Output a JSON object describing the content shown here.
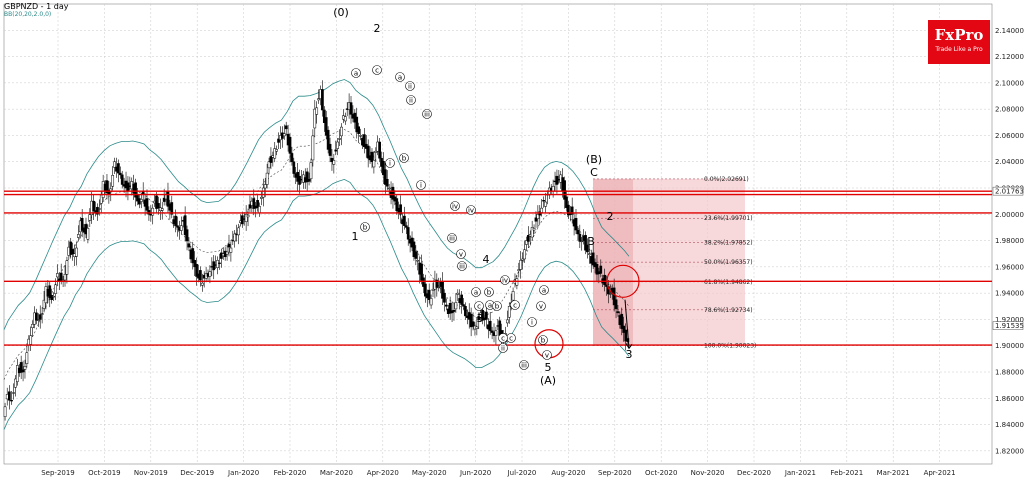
{
  "header": {
    "symbol_title": "GBPNZD - 1 day",
    "indicator": "BB(20,20,2.0,0)"
  },
  "logo": {
    "name": "FxPro",
    "tagline": "Trade Like a Pro"
  },
  "colors": {
    "background": "#ffffff",
    "grid": "#c8c8c8",
    "bullish": "#1a9a1a",
    "bearish": "#d01010",
    "candle": "#000000",
    "bollinger": "#2a8a8a",
    "level_line": "#e00000",
    "fib_zone": "#f3c9cc",
    "fib_zone_dark": "#e9a8ae",
    "logo_bg": "#e30613"
  },
  "chart_data": {
    "type": "candlestick",
    "title": "GBPNZD - 1 day",
    "indicator": "BB(20,20,2.0,0)",
    "ylim": [
      1.81,
      2.16
    ],
    "y_ticks": [
      "2.14000",
      "2.12000",
      "2.10000",
      "2.08000",
      "2.06000",
      "2.04000",
      "2.02000",
      "2.00000",
      "1.98000",
      "1.96000",
      "1.94000",
      "1.92000",
      "1.90000",
      "1.88000",
      "1.86000",
      "1.84000",
      "1.82000"
    ],
    "x_ticks": [
      "Sep-2019",
      "Oct-2019",
      "Nov-2019",
      "Dec-2019",
      "Jan-2020",
      "Feb-2020",
      "Mar-2020",
      "Apr-2020",
      "May-2020",
      "Jun-2020",
      "Jul-2020",
      "Aug-2020",
      "Sep-2020",
      "Oct-2020",
      "Nov-2020",
      "Dec-2020",
      "Jan-2021",
      "Feb-2021",
      "Mar-2021",
      "Apr-2021"
    ],
    "grid": true,
    "price_path": [
      [
        0,
        1.85
      ],
      [
        3,
        1.865
      ],
      [
        6,
        1.86
      ],
      [
        10,
        1.885
      ],
      [
        14,
        1.88
      ],
      [
        18,
        1.905
      ],
      [
        22,
        1.925
      ],
      [
        26,
        1.92
      ],
      [
        30,
        1.945
      ],
      [
        34,
        1.935
      ],
      [
        38,
        1.955
      ],
      [
        42,
        1.95
      ],
      [
        46,
        1.975
      ],
      [
        50,
        1.97
      ],
      [
        54,
        1.995
      ],
      [
        58,
        1.985
      ],
      [
        62,
        2.01
      ],
      [
        66,
        2.0
      ],
      [
        70,
        2.025
      ],
      [
        74,
        2.015
      ],
      [
        78,
        2.04
      ],
      [
        82,
        2.03
      ],
      [
        86,
        2.02
      ],
      [
        90,
        2.025
      ],
      [
        94,
        2.01
      ],
      [
        98,
        2.015
      ],
      [
        102,
        2.0
      ],
      [
        106,
        2.01
      ],
      [
        110,
        2.005
      ],
      [
        114,
        2.015
      ],
      [
        118,
        2.0
      ],
      [
        122,
        1.99
      ],
      [
        126,
        1.995
      ],
      [
        130,
        1.975
      ],
      [
        134,
        1.96
      ],
      [
        138,
        1.95
      ],
      [
        142,
        1.955
      ],
      [
        146,
        1.96
      ],
      [
        150,
        1.965
      ],
      [
        154,
        1.97
      ],
      [
        158,
        1.975
      ],
      [
        162,
        1.985
      ],
      [
        166,
        1.995
      ],
      [
        170,
        2.0
      ],
      [
        174,
        2.01
      ],
      [
        178,
        2.005
      ],
      [
        182,
        2.02
      ],
      [
        186,
        2.04
      ],
      [
        190,
        2.05
      ],
      [
        194,
        2.06
      ],
      [
        198,
        2.065
      ],
      [
        202,
        2.04
      ],
      [
        206,
        2.025
      ],
      [
        210,
        2.03
      ],
      [
        214,
        2.025
      ],
      [
        218,
        2.08
      ],
      [
        222,
        2.095
      ],
      [
        226,
        2.06
      ],
      [
        230,
        2.04
      ],
      [
        234,
        2.055
      ],
      [
        238,
        2.075
      ],
      [
        242,
        2.085
      ],
      [
        246,
        2.07
      ],
      [
        250,
        2.06
      ],
      [
        254,
        2.05
      ],
      [
        258,
        2.04
      ],
      [
        262,
        2.055
      ],
      [
        266,
        2.03
      ],
      [
        270,
        2.02
      ],
      [
        274,
        2.01
      ],
      [
        278,
        2.0
      ],
      [
        282,
        1.99
      ],
      [
        286,
        1.975
      ],
      [
        290,
        1.965
      ],
      [
        294,
        1.945
      ],
      [
        298,
        1.935
      ],
      [
        302,
        1.95
      ],
      [
        306,
        1.945
      ],
      [
        310,
        1.93
      ],
      [
        314,
        1.925
      ],
      [
        318,
        1.94
      ],
      [
        322,
        1.93
      ],
      [
        326,
        1.92
      ],
      [
        330,
        1.915
      ],
      [
        334,
        1.925
      ],
      [
        338,
        1.92
      ],
      [
        342,
        1.91
      ],
      [
        346,
        1.915
      ],
      [
        350,
        1.905
      ],
      [
        354,
        1.93
      ],
      [
        358,
        1.95
      ],
      [
        362,
        1.965
      ],
      [
        366,
        1.98
      ],
      [
        370,
        1.99
      ],
      [
        374,
        2.0
      ],
      [
        378,
        2.01
      ],
      [
        382,
        2.02
      ],
      [
        386,
        2.025
      ],
      [
        390,
        2.03
      ],
      [
        394,
        2.005
      ],
      [
        398,
        2.0
      ],
      [
        402,
        1.985
      ],
      [
        406,
        1.98
      ],
      [
        410,
        1.97
      ],
      [
        414,
        1.96
      ],
      [
        418,
        1.955
      ],
      [
        422,
        1.945
      ],
      [
        426,
        1.94
      ],
      [
        430,
        1.925
      ],
      [
        434,
        1.91
      ],
      [
        437,
        1.905
      ]
    ],
    "horizontal_levels": [
      2.0176,
      2.015,
      2.001,
      1.949,
      1.9005
    ],
    "price_labels": [
      "2.01763",
      "1.91535"
    ],
    "fibonacci": [
      {
        "label": "0.0%(2.02691)",
        "value": 2.0269
      },
      {
        "label": "23.6%(1.99701)",
        "value": 1.997
      },
      {
        "label": "38.2%(1.97852)",
        "value": 1.9785
      },
      {
        "label": "50.0%(1.96357)",
        "value": 1.9636
      },
      {
        "label": "61.8%(1.94862)",
        "value": 1.9486
      },
      {
        "label": "78.6%(1.92734)",
        "value": 1.9273
      },
      {
        "label": "100.0%(1.90023)",
        "value": 1.9002
      }
    ],
    "wave_labels": [
      "(0)",
      "2",
      "1",
      "(B)",
      "C",
      "B",
      "2",
      "4",
      "3",
      "5",
      "(A)",
      "3"
    ],
    "circled_labels": [
      "a",
      "c",
      "b",
      "i",
      "a",
      "ii",
      "iii",
      "ii",
      "b",
      "i",
      "iv",
      "iv",
      "iii",
      "v",
      "iii",
      "a",
      "c",
      "b",
      "a",
      "b",
      "iv",
      "c",
      "c",
      "v",
      "a",
      "i",
      "ii",
      "c",
      "b",
      "iii",
      "v"
    ]
  }
}
